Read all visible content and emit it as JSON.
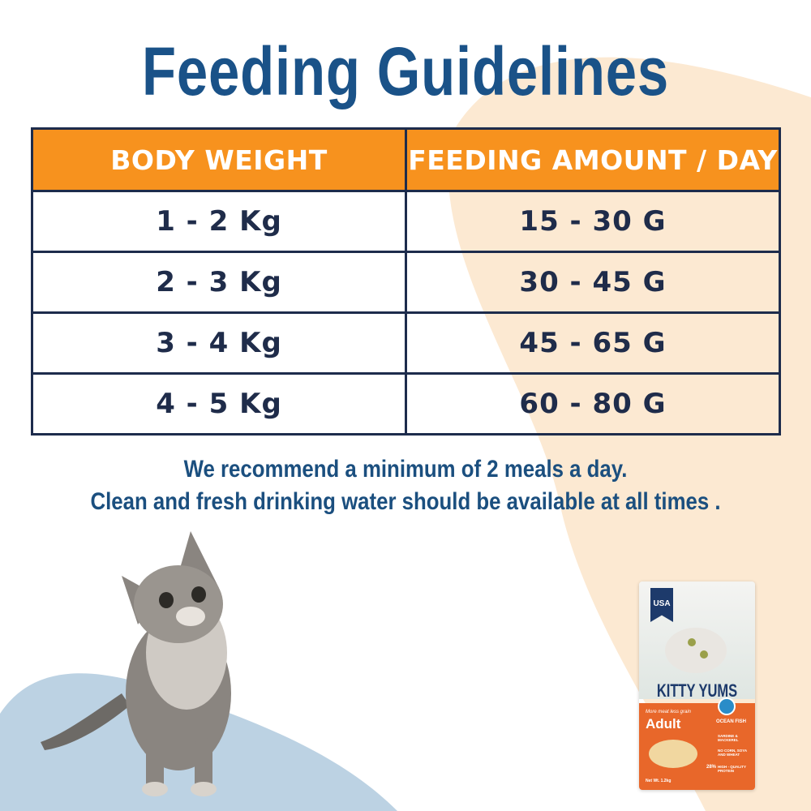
{
  "title": "Feeding Guidelines",
  "table": {
    "headers": [
      "BODY WEIGHT",
      "FEEDING AMOUNT / DAY"
    ],
    "rows": [
      [
        "1 - 2 Kg",
        "15 - 30 G"
      ],
      [
        "2 - 3 Kg",
        "30 - 45 G"
      ],
      [
        "3 - 4 Kg",
        "45 - 65 G"
      ],
      [
        "4 - 5 Kg",
        "60 - 80 G"
      ]
    ]
  },
  "notes": [
    "We recommend a minimum of 2 meals a day.",
    "Clean and fresh drinking water should be available at all times ."
  ],
  "package": {
    "badge": "USA",
    "brand": "KITTY YUMS",
    "tagline": "More meat less grain",
    "variant": "Adult",
    "flavor": "OCEAN FISH",
    "features": [
      "SARDINE & MACKEREL",
      "NO CORN, SOYA AND WHEAT",
      "HIGH - QUALITY PROTEIN"
    ],
    "protein": "28%",
    "net_weight": "Net Wt. 1.2kg"
  },
  "colors": {
    "title": "#1a5288",
    "header": "#f7921e",
    "border": "#1d2c4c",
    "peach": "#fce9d2",
    "blue_blob": "#bcd2e3"
  }
}
